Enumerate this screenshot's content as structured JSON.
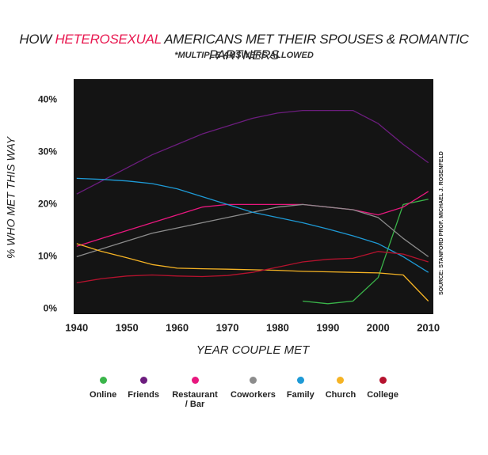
{
  "chart_data": {
    "type": "line",
    "title": [
      "HOW",
      "HETEROSEXUAL",
      "AMERICANS MET THEIR SPOUSES & ROMANTIC PARTNERS"
    ],
    "title_highlight_color": "#e8174f",
    "subtitle": "*MULTIPLE ANSWERS ALLOWED",
    "xlabel": "YEAR COUPLE MET",
    "ylabel": "% WHO MET THIS WAY",
    "source": "SOURCE: STANFORD PROF. MICHAEL J. ROSENFELD",
    "background": "#141414",
    "x": [
      1940,
      1945,
      1950,
      1955,
      1960,
      1965,
      1970,
      1975,
      1980,
      1985,
      1990,
      1995,
      2000,
      2005,
      2010
    ],
    "xlim": [
      1939.4,
      2011
    ],
    "xticks": [
      1940,
      1950,
      1960,
      1970,
      1980,
      1990,
      2000,
      2010
    ],
    "ylim": [
      -1,
      44
    ],
    "yticks": [
      {
        "value": 0,
        "label": "0%"
      },
      {
        "value": 10,
        "label": "10%"
      },
      {
        "value": 20,
        "label": "20%"
      },
      {
        "value": 30,
        "label": "30%"
      },
      {
        "value": 40,
        "label": "40%"
      }
    ],
    "series": [
      {
        "name": "Online",
        "color": "#3ab54a",
        "values": [
          null,
          null,
          null,
          null,
          null,
          null,
          null,
          null,
          null,
          1.5,
          1,
          1.5,
          6,
          20,
          21
        ]
      },
      {
        "name": "Friends",
        "color": "#6c1d7e",
        "values": [
          22,
          24.5,
          27,
          29.5,
          31.5,
          33.5,
          35,
          36.5,
          37.5,
          38,
          38,
          38,
          35.5,
          31.5,
          28
        ]
      },
      {
        "name": "Restaurant / Bar",
        "color": "#e8177e",
        "values": [
          12,
          13.5,
          15,
          16.5,
          18,
          19.5,
          20,
          20,
          20,
          20,
          19.5,
          19,
          18,
          19.5,
          22.5
        ]
      },
      {
        "name": "Coworkers",
        "color": "#8c8c8c",
        "values": [
          10,
          11.5,
          13,
          14.5,
          15.5,
          16.5,
          17.5,
          18.5,
          19.5,
          20,
          19.5,
          19,
          17.5,
          13.5,
          10
        ]
      },
      {
        "name": "Family",
        "color": "#1e9ad6",
        "values": [
          25,
          24.8,
          24.5,
          24,
          23,
          21.5,
          20,
          18.5,
          17.5,
          16.5,
          15.3,
          14,
          12.5,
          10,
          7
        ]
      },
      {
        "name": "Church",
        "color": "#f5b324",
        "values": [
          12.5,
          11,
          9.8,
          8.5,
          7.8,
          7.7,
          7.6,
          7.5,
          7.4,
          7.2,
          7.1,
          7,
          6.9,
          6.5,
          1.5
        ]
      },
      {
        "name": "College",
        "color": "#b5122e",
        "values": [
          5,
          5.8,
          6.3,
          6.5,
          6.3,
          6.2,
          6.4,
          7,
          8,
          9,
          9.5,
          9.7,
          11,
          10.5,
          9
        ]
      }
    ]
  }
}
